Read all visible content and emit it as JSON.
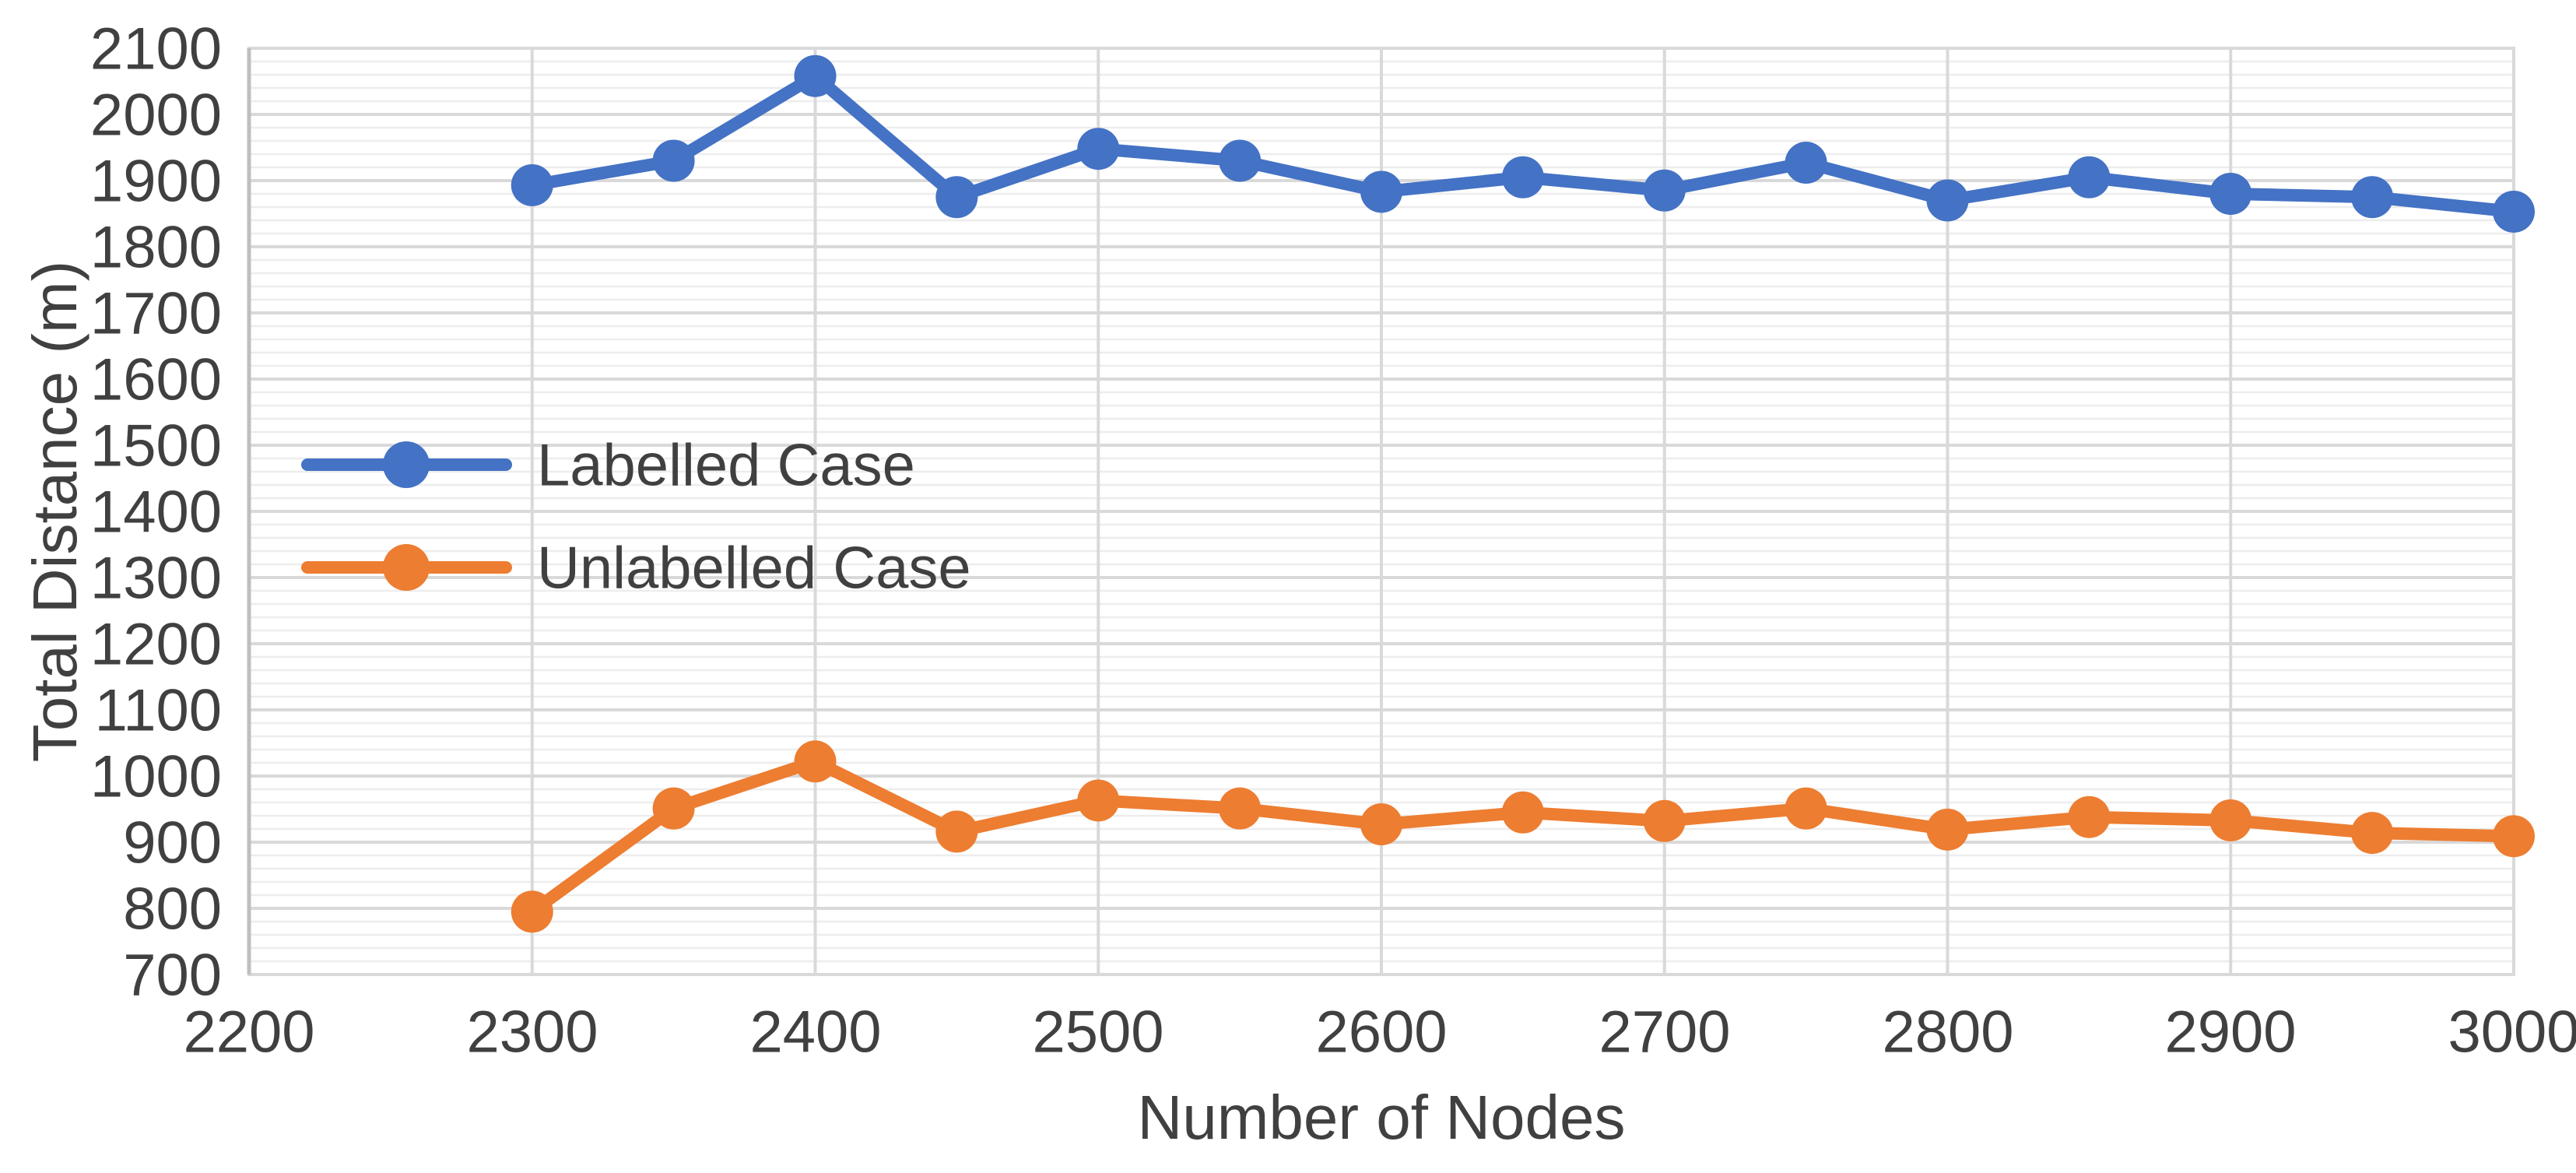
{
  "chart_data": {
    "type": "line",
    "title": "",
    "xlabel": "Number of Nodes",
    "ylabel": "Total Distance (m)",
    "x": [
      2300,
      2350,
      2400,
      2450,
      2500,
      2550,
      2600,
      2650,
      2700,
      2750,
      2800,
      2850,
      2900,
      2950,
      3000
    ],
    "series": [
      {
        "name": "Labelled Case",
        "color": "#4472C4",
        "values": [
          1893,
          1930,
          2058,
          1875,
          1948,
          1930,
          1883,
          1905,
          1885,
          1927,
          1870,
          1905,
          1880,
          1875,
          1853
        ]
      },
      {
        "name": "Unlabelled Case",
        "color": "#ED7D31",
        "values": [
          795,
          951,
          1022,
          916,
          963,
          951,
          927,
          945,
          932,
          951,
          919,
          938,
          933,
          914,
          909
        ]
      }
    ],
    "xlim": [
      2200,
      3000
    ],
    "ylim": [
      700,
      2100
    ],
    "x_ticks": [
      2200,
      2300,
      2400,
      2500,
      2600,
      2700,
      2800,
      2900,
      3000
    ],
    "y_ticks": [
      700,
      800,
      900,
      1000,
      1100,
      1200,
      1300,
      1400,
      1500,
      1600,
      1700,
      1800,
      1900,
      2000,
      2100
    ],
    "y_minor_step": 20,
    "x_tick_labels": [
      "2200",
      "2300",
      "2400",
      "2500",
      "2600",
      "2700",
      "2800",
      "2900",
      "3000"
    ],
    "y_tick_labels": [
      "2100",
      "2000",
      "1900",
      "1800",
      "1700",
      "1600",
      "1500",
      "1400",
      "1300",
      "1200",
      "1100",
      "1000",
      "900",
      "800",
      "700"
    ],
    "legend_position": "inside-left",
    "grid": {
      "major_color": "#D9D9D9",
      "minor_color": "#EDEDED",
      "axis_line_color": "#BFBFBF",
      "text_color": "#404040",
      "background": "#FFFFFF"
    },
    "marker": "circle",
    "line_width": 16,
    "marker_radius": 27
  }
}
